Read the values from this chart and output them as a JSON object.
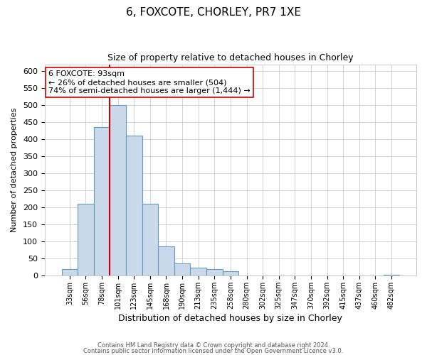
{
  "title": "6, FOXCOTE, CHORLEY, PR7 1XE",
  "subtitle": "Size of property relative to detached houses in Chorley",
  "xlabel": "Distribution of detached houses by size in Chorley",
  "ylabel": "Number of detached properties",
  "bin_labels": [
    "33sqm",
    "56sqm",
    "78sqm",
    "101sqm",
    "123sqm",
    "145sqm",
    "168sqm",
    "190sqm",
    "213sqm",
    "235sqm",
    "258sqm",
    "280sqm",
    "302sqm",
    "325sqm",
    "347sqm",
    "370sqm",
    "392sqm",
    "415sqm",
    "437sqm",
    "460sqm",
    "482sqm"
  ],
  "bar_values": [
    18,
    210,
    435,
    500,
    410,
    210,
    85,
    35,
    22,
    18,
    12,
    0,
    0,
    0,
    0,
    0,
    0,
    0,
    0,
    0,
    3
  ],
  "bar_color": "#c9d9eb",
  "bar_edge_color": "#6699bb",
  "marker_index": 3,
  "marker_color": "#cc0000",
  "annotation_title": "6 FOXCOTE: 93sqm",
  "annotation_line1": "← 26% of detached houses are smaller (504)",
  "annotation_line2": "74% of semi-detached houses are larger (1,444) →",
  "annotation_box_edge": "#cc0000",
  "ylim": [
    0,
    620
  ],
  "yticks": [
    0,
    50,
    100,
    150,
    200,
    250,
    300,
    350,
    400,
    450,
    500,
    550,
    600
  ],
  "footer1": "Contains HM Land Registry data © Crown copyright and database right 2024.",
  "footer2": "Contains public sector information licensed under the Open Government Licence v3.0.",
  "plot_bg_color": "#ffffff",
  "fig_bg_color": "#ffffff",
  "grid_color": "#cccccc",
  "title_fontsize": 11,
  "subtitle_fontsize": 9,
  "xlabel_fontsize": 9,
  "ylabel_fontsize": 8,
  "tick_fontsize": 8,
  "xtick_fontsize": 7,
  "ann_fontsize": 8
}
